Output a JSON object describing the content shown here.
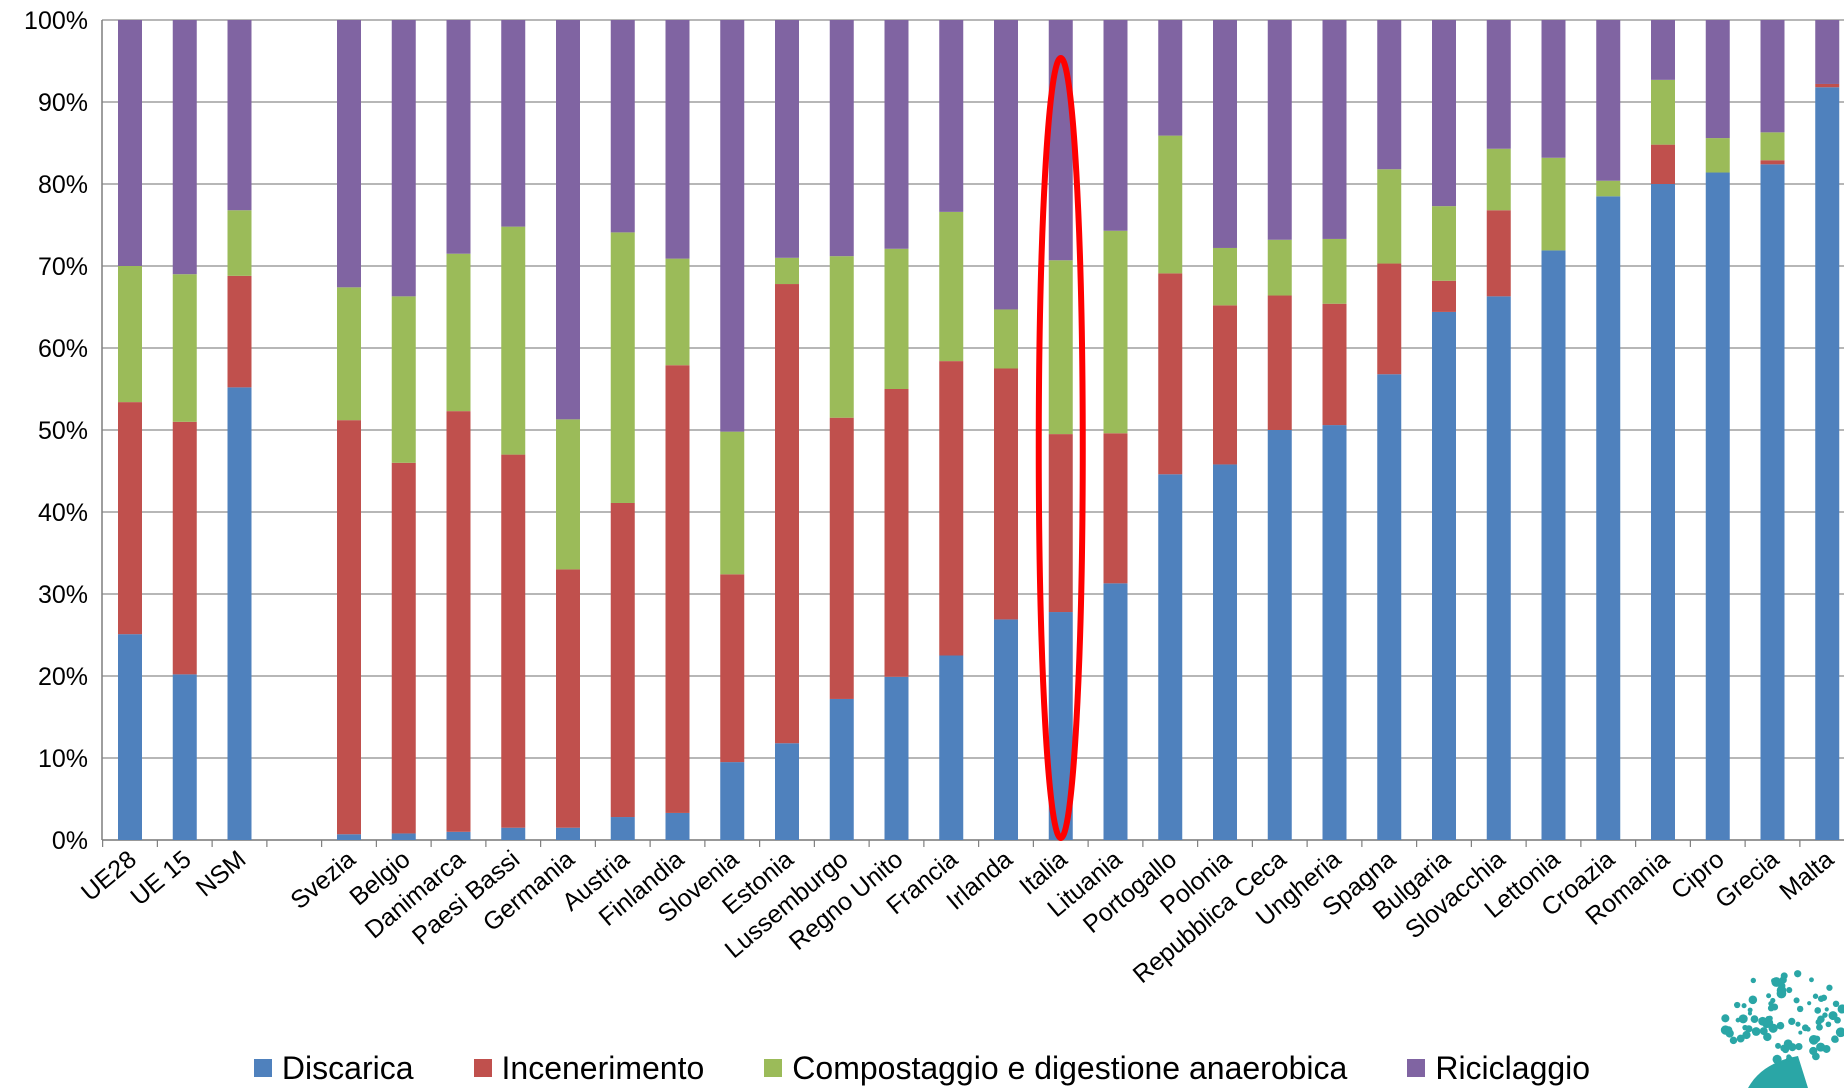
{
  "chart_data": {
    "type": "bar",
    "stacked": true,
    "categories": [
      "UE28",
      "UE 15",
      "NSM",
      "",
      "Svezia",
      "Belgio",
      "Danimarca",
      "Paesi Bassi",
      "Germania",
      "Austria",
      "Finlandia",
      "Slovenia",
      "Estonia",
      "Lussemburgo",
      "Regno Unito",
      "Francia",
      "Irlanda",
      "Italia",
      "Lituania",
      "Portogallo",
      "Polonia",
      "Repubblica Ceca",
      "Ungheria",
      "Spagna",
      "Bulgaria",
      "Slovacchia",
      "Lettonia",
      "Croazia",
      "Romania",
      "Cipro",
      "Grecia",
      "Malta"
    ],
    "series": [
      {
        "name": "Discarica",
        "color": "#4F81BD",
        "values": [
          25.1,
          20.2,
          55.2,
          null,
          0.7,
          0.8,
          1.0,
          1.5,
          1.5,
          2.8,
          3.3,
          9.5,
          11.8,
          17.2,
          19.9,
          22.5,
          26.9,
          27.8,
          31.3,
          44.6,
          45.8,
          50.0,
          50.6,
          56.8,
          64.4,
          66.3,
          71.9,
          78.5,
          80.0,
          81.4,
          82.4,
          91.8
        ]
      },
      {
        "name": "Incenerimento",
        "color": "#C0504D",
        "values": [
          28.3,
          30.8,
          13.6,
          null,
          50.5,
          45.2,
          51.3,
          45.5,
          31.5,
          38.3,
          54.6,
          22.9,
          56.0,
          34.3,
          35.1,
          35.9,
          30.6,
          21.7,
          18.3,
          24.5,
          19.4,
          16.4,
          14.8,
          13.5,
          3.8,
          10.5,
          0,
          0,
          4.8,
          0,
          0.5,
          0.4
        ]
      },
      {
        "name": "Compostaggio e digestione anaerobica",
        "color": "#9BBB59",
        "values": [
          16.6,
          18.0,
          8.0,
          null,
          16.2,
          20.3,
          19.2,
          27.8,
          18.3,
          33.0,
          13.0,
          17.4,
          3.2,
          19.7,
          17.1,
          18.2,
          7.2,
          21.2,
          24.7,
          16.8,
          7.0,
          6.8,
          7.9,
          11.5,
          9.1,
          7.5,
          11.3,
          1.9,
          7.9,
          4.2,
          3.4,
          0
        ]
      },
      {
        "name": "Riciclaggio",
        "color": "#8064A2",
        "values": [
          30.0,
          31.0,
          23.2,
          null,
          32.6,
          33.7,
          28.5,
          25.2,
          48.7,
          25.9,
          29.1,
          50.2,
          29.0,
          28.8,
          27.9,
          23.4,
          35.3,
          29.3,
          25.7,
          14.1,
          27.8,
          26.8,
          26.7,
          18.2,
          22.7,
          15.7,
          16.8,
          19.6,
          7.3,
          14.4,
          13.7,
          7.8
        ]
      }
    ],
    "ylim": [
      0,
      100
    ],
    "yticks": [
      "0%",
      "10%",
      "20%",
      "30%",
      "40%",
      "50%",
      "60%",
      "70%",
      "80%",
      "90%",
      "100%"
    ],
    "grid": true,
    "legend_position": "bottom",
    "title": "",
    "xlabel": "",
    "ylabel": "",
    "highlight": {
      "category": "Italia",
      "shape": "ellipse",
      "color": "#FF0000"
    }
  },
  "logo": {
    "name": "tree-logo-icon",
    "color": "#2AA6A6"
  }
}
